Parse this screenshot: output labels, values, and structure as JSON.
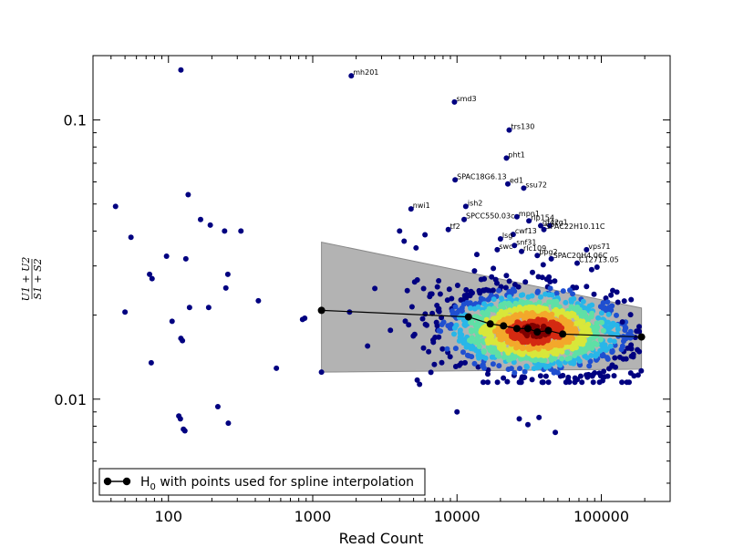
{
  "chart_data": {
    "type": "scatter",
    "title": "",
    "xlabel": "Read Count",
    "ylabel": {
      "numerator": "U1 + U2",
      "denominator": "S1 + S2"
    },
    "xscale": "log",
    "yscale": "log",
    "xlim": [
      30,
      300000
    ],
    "ylim": [
      0.0043,
      0.17
    ],
    "x_ticks": [
      {
        "value": 100,
        "label": "100"
      },
      {
        "value": 1000,
        "label": "1000"
      },
      {
        "value": 10000,
        "label": "10000"
      },
      {
        "value": 100000,
        "label": "100000"
      }
    ],
    "y_ticks": [
      {
        "value": 0.1,
        "label": "0.1"
      },
      {
        "value": 0.01,
        "label": "0.01"
      }
    ],
    "grid": false,
    "legend": {
      "placement": "bottom-left",
      "label_main": "H",
      "label_sub": "0",
      "label_rest": " with points used for spline interpolation"
    },
    "colors": {
      "sparse_points": "#000080",
      "density_cmap": [
        "#000080",
        "#1f4fd0",
        "#29b6e8",
        "#5fe0a6",
        "#d8e73a",
        "#f3a82b",
        "#d42a12",
        "#7f0000"
      ],
      "band_fill": "#b3b3b3",
      "band_edge": "#8a8a8a",
      "h0_line": "#000000"
    },
    "labeled_points": [
      {
        "name": "mh201",
        "x": 1850,
        "y": 0.144
      },
      {
        "name": "smd3",
        "x": 9600,
        "y": 0.116
      },
      {
        "name": "trs130",
        "x": 23000,
        "y": 0.092
      },
      {
        "name": "pht1",
        "x": 22000,
        "y": 0.073
      },
      {
        "name": "SPAC18G6.13",
        "x": 9700,
        "y": 0.061
      },
      {
        "name": "ed1",
        "x": 22500,
        "y": 0.059
      },
      {
        "name": "ssu72",
        "x": 29000,
        "y": 0.057
      },
      {
        "name": "nwi1",
        "x": 4800,
        "y": 0.048
      },
      {
        "name": "ish2",
        "x": 11500,
        "y": 0.049
      },
      {
        "name": "mpn1",
        "x": 26000,
        "y": 0.045
      },
      {
        "name": "SPCC550.03c",
        "x": 11200,
        "y": 0.044
      },
      {
        "name": "rlp154",
        "x": 31500,
        "y": 0.0435
      },
      {
        "name": "tf2",
        "x": 8700,
        "y": 0.0405
      },
      {
        "name": "gf42",
        "x": 38000,
        "y": 0.0418
      },
      {
        "name": "tcg1",
        "x": 44000,
        "y": 0.0418
      },
      {
        "name": "SPAC22H10.11C",
        "x": 40000,
        "y": 0.0405
      },
      {
        "name": "cwf13",
        "x": 24500,
        "y": 0.0389
      },
      {
        "name": "lsg",
        "x": 20000,
        "y": 0.0375
      },
      {
        "name": "snf31",
        "x": 25000,
        "y": 0.0355
      },
      {
        "name": "swc",
        "x": 19000,
        "y": 0.0343
      },
      {
        "name": "rlc109",
        "x": 28000,
        "y": 0.0338
      },
      {
        "name": "vps71",
        "x": 79000,
        "y": 0.0343
      },
      {
        "name": "ppg2",
        "x": 36000,
        "y": 0.0327
      },
      {
        "name": "SPAC20H4.06C",
        "x": 45000,
        "y": 0.0318
      },
      {
        "name": "C12713.05",
        "x": 68000,
        "y": 0.0307
      }
    ],
    "sparse_points": [
      {
        "x": 122,
        "y": 0.151
      },
      {
        "x": 43,
        "y": 0.049
      },
      {
        "x": 55,
        "y": 0.038
      },
      {
        "x": 137,
        "y": 0.054
      },
      {
        "x": 167,
        "y": 0.044
      },
      {
        "x": 195,
        "y": 0.042
      },
      {
        "x": 245,
        "y": 0.04
      },
      {
        "x": 318,
        "y": 0.04
      },
      {
        "x": 97,
        "y": 0.0325
      },
      {
        "x": 132,
        "y": 0.0318
      },
      {
        "x": 74,
        "y": 0.028
      },
      {
        "x": 77,
        "y": 0.027
      },
      {
        "x": 258,
        "y": 0.028
      },
      {
        "x": 250,
        "y": 0.025
      },
      {
        "x": 420,
        "y": 0.0225
      },
      {
        "x": 50,
        "y": 0.0205
      },
      {
        "x": 140,
        "y": 0.0213
      },
      {
        "x": 190,
        "y": 0.0213
      },
      {
        "x": 106,
        "y": 0.019
      },
      {
        "x": 122,
        "y": 0.0165
      },
      {
        "x": 125,
        "y": 0.0162
      },
      {
        "x": 76,
        "y": 0.0135
      },
      {
        "x": 560,
        "y": 0.0129
      },
      {
        "x": 850,
        "y": 0.0193
      },
      {
        "x": 880,
        "y": 0.0195
      },
      {
        "x": 220,
        "y": 0.0094
      },
      {
        "x": 118,
        "y": 0.0087
      },
      {
        "x": 121,
        "y": 0.0085
      },
      {
        "x": 127,
        "y": 0.0078
      },
      {
        "x": 130,
        "y": 0.0077
      },
      {
        "x": 260,
        "y": 0.0082
      },
      {
        "x": 10000,
        "y": 0.009
      },
      {
        "x": 27000,
        "y": 0.0085
      },
      {
        "x": 31000,
        "y": 0.0081
      },
      {
        "x": 37000,
        "y": 0.0086
      },
      {
        "x": 48000,
        "y": 0.0076
      },
      {
        "x": 4000,
        "y": 0.04
      },
      {
        "x": 4300,
        "y": 0.0368
      },
      {
        "x": 5200,
        "y": 0.0348
      },
      {
        "x": 6000,
        "y": 0.0388
      },
      {
        "x": 1150,
        "y": 0.0125
      },
      {
        "x": 1800,
        "y": 0.0205
      },
      {
        "x": 2400,
        "y": 0.0155
      },
      {
        "x": 5300,
        "y": 0.0117
      },
      {
        "x": 5500,
        "y": 0.0113
      },
      {
        "x": 160000,
        "y": 0.0124
      },
      {
        "x": 180000,
        "y": 0.0122
      },
      {
        "x": 120000,
        "y": 0.0245
      },
      {
        "x": 140000,
        "y": 0.0189
      }
    ],
    "density_cloud": {
      "center_x": 35000,
      "center_y": 0.0175,
      "n_points": 1400,
      "x_range": [
        1400,
        190000
      ],
      "y_range": [
        0.0115,
        0.034
      ]
    },
    "confidence_band": {
      "x": [
        1150,
        190000
      ],
      "upper": [
        0.0365,
        0.0212
      ],
      "lower": [
        0.0125,
        0.0128
      ]
    },
    "h0_spline_points": {
      "x": [
        1150,
        12000,
        17000,
        21000,
        26000,
        31000,
        36000,
        43000,
        54000,
        190000
      ],
      "y": [
        0.0208,
        0.0197,
        0.0186,
        0.0183,
        0.0179,
        0.0179,
        0.0174,
        0.0176,
        0.0171,
        0.0167
      ]
    }
  }
}
